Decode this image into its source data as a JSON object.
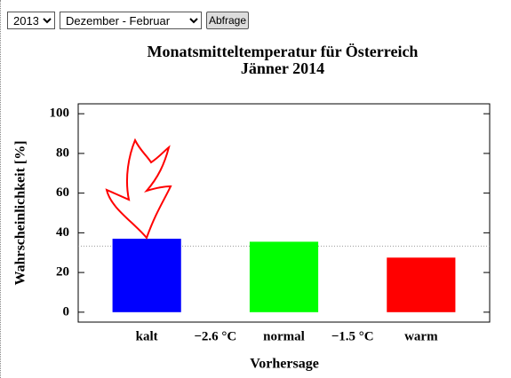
{
  "controls": {
    "year": "2013",
    "season": "Dezember - Februar",
    "button": "Abfrage"
  },
  "chart_data": {
    "type": "bar",
    "title": "Monatsmitteltemperatur für Österreich",
    "subtitle": "Jänner 2014",
    "y_label": "Wahrscheinlichkeit [%]",
    "x_label": "Vorhersage",
    "categories": [
      "kalt",
      "normal",
      "warm"
    ],
    "values": [
      37,
      35.5,
      27.5
    ],
    "colors": [
      "#0000ff",
      "#00ff00",
      "#ff0000"
    ],
    "thresholds": [
      "−2.6 °C",
      "−1.5 °C"
    ],
    "reference_line": 33.3,
    "ylim": [
      -5,
      105
    ],
    "yticks": [
      0,
      20,
      40,
      60,
      80,
      100
    ]
  }
}
